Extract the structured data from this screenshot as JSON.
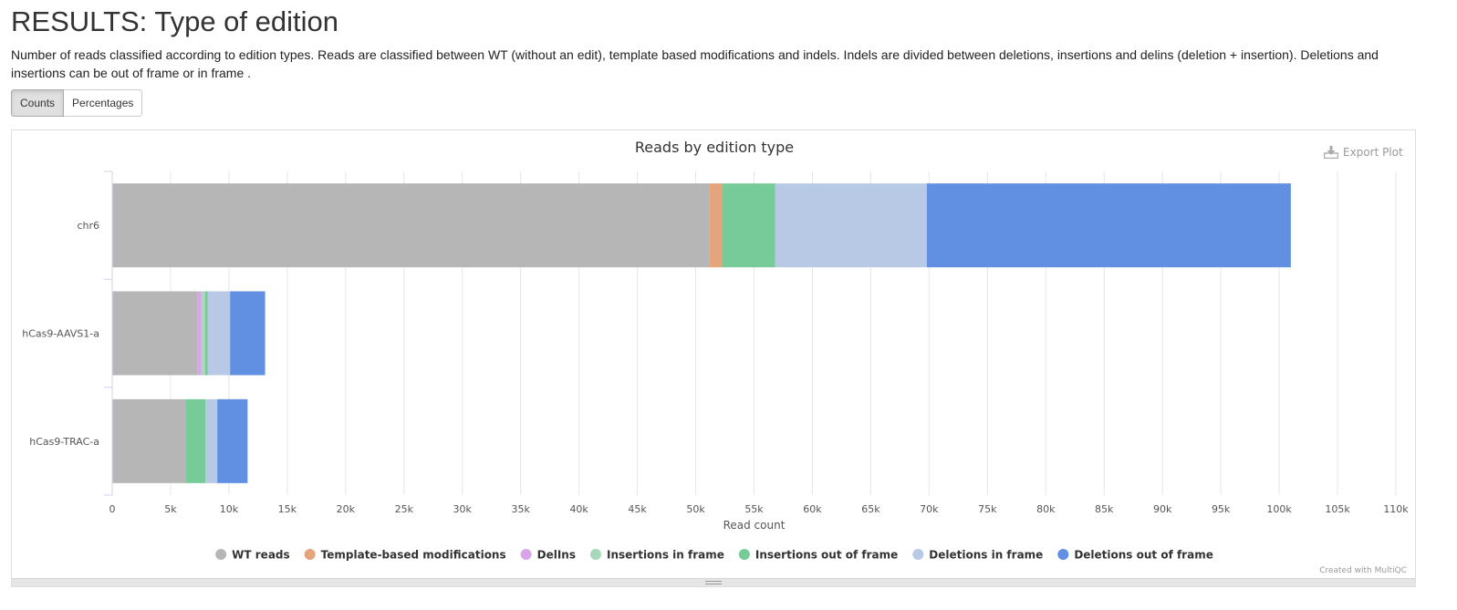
{
  "page": {
    "title": "RESULTS: Type of edition",
    "description": "Number of reads classified according to edition types. Reads are classified between WT (without an edit), template based modifications and indels. Indels are divided between deletions, insertions and delins (deletion + insertion). Deletions and insertions can be out of frame or in frame ."
  },
  "toggle": {
    "counts_label": "Counts",
    "percentages_label": "Percentages",
    "selected": "Counts"
  },
  "plot": {
    "export_label": "Export Plot",
    "credit": "Created with MultiQC"
  },
  "chart_data": {
    "type": "bar",
    "orientation": "horizontal",
    "stacked": true,
    "title": "Reads by edition type",
    "xlabel": "Read count",
    "ylabel": "",
    "xlim": [
      0,
      110000
    ],
    "x_ticks": [
      0,
      5000,
      10000,
      15000,
      20000,
      25000,
      30000,
      35000,
      40000,
      45000,
      50000,
      55000,
      60000,
      65000,
      70000,
      75000,
      80000,
      85000,
      90000,
      95000,
      100000,
      105000,
      110000
    ],
    "x_tick_labels": [
      "0",
      "5k",
      "10k",
      "15k",
      "20k",
      "25k",
      "30k",
      "35k",
      "40k",
      "45k",
      "50k",
      "55k",
      "60k",
      "65k",
      "70k",
      "75k",
      "80k",
      "85k",
      "90k",
      "95k",
      "100k",
      "105k",
      "110k"
    ],
    "grid": true,
    "legend_position": "bottom",
    "categories": [
      "chr6",
      "hCas9-AAVS1-a",
      "hCas9-TRAC-a"
    ],
    "series": [
      {
        "name": "WT reads",
        "color": "#b6b6b6",
        "values": [
          51200,
          7300,
          6300
        ]
      },
      {
        "name": "Template-based modifications",
        "color": "#e4a47c",
        "values": [
          1100,
          0,
          0
        ]
      },
      {
        "name": "DelIns",
        "color": "#d8a6e8",
        "values": [
          0,
          350,
          0
        ]
      },
      {
        "name": "Insertions in frame",
        "color": "#a8d8b9",
        "values": [
          0,
          300,
          0
        ]
      },
      {
        "name": "Insertions out of frame",
        "color": "#77cb98",
        "values": [
          4500,
          250,
          1700
        ]
      },
      {
        "name": "Deletions in frame",
        "color": "#b8c9e6",
        "values": [
          13000,
          1900,
          1000
        ]
      },
      {
        "name": "Deletions out of frame",
        "color": "#6190e2",
        "values": [
          31200,
          3000,
          2600
        ]
      }
    ]
  }
}
